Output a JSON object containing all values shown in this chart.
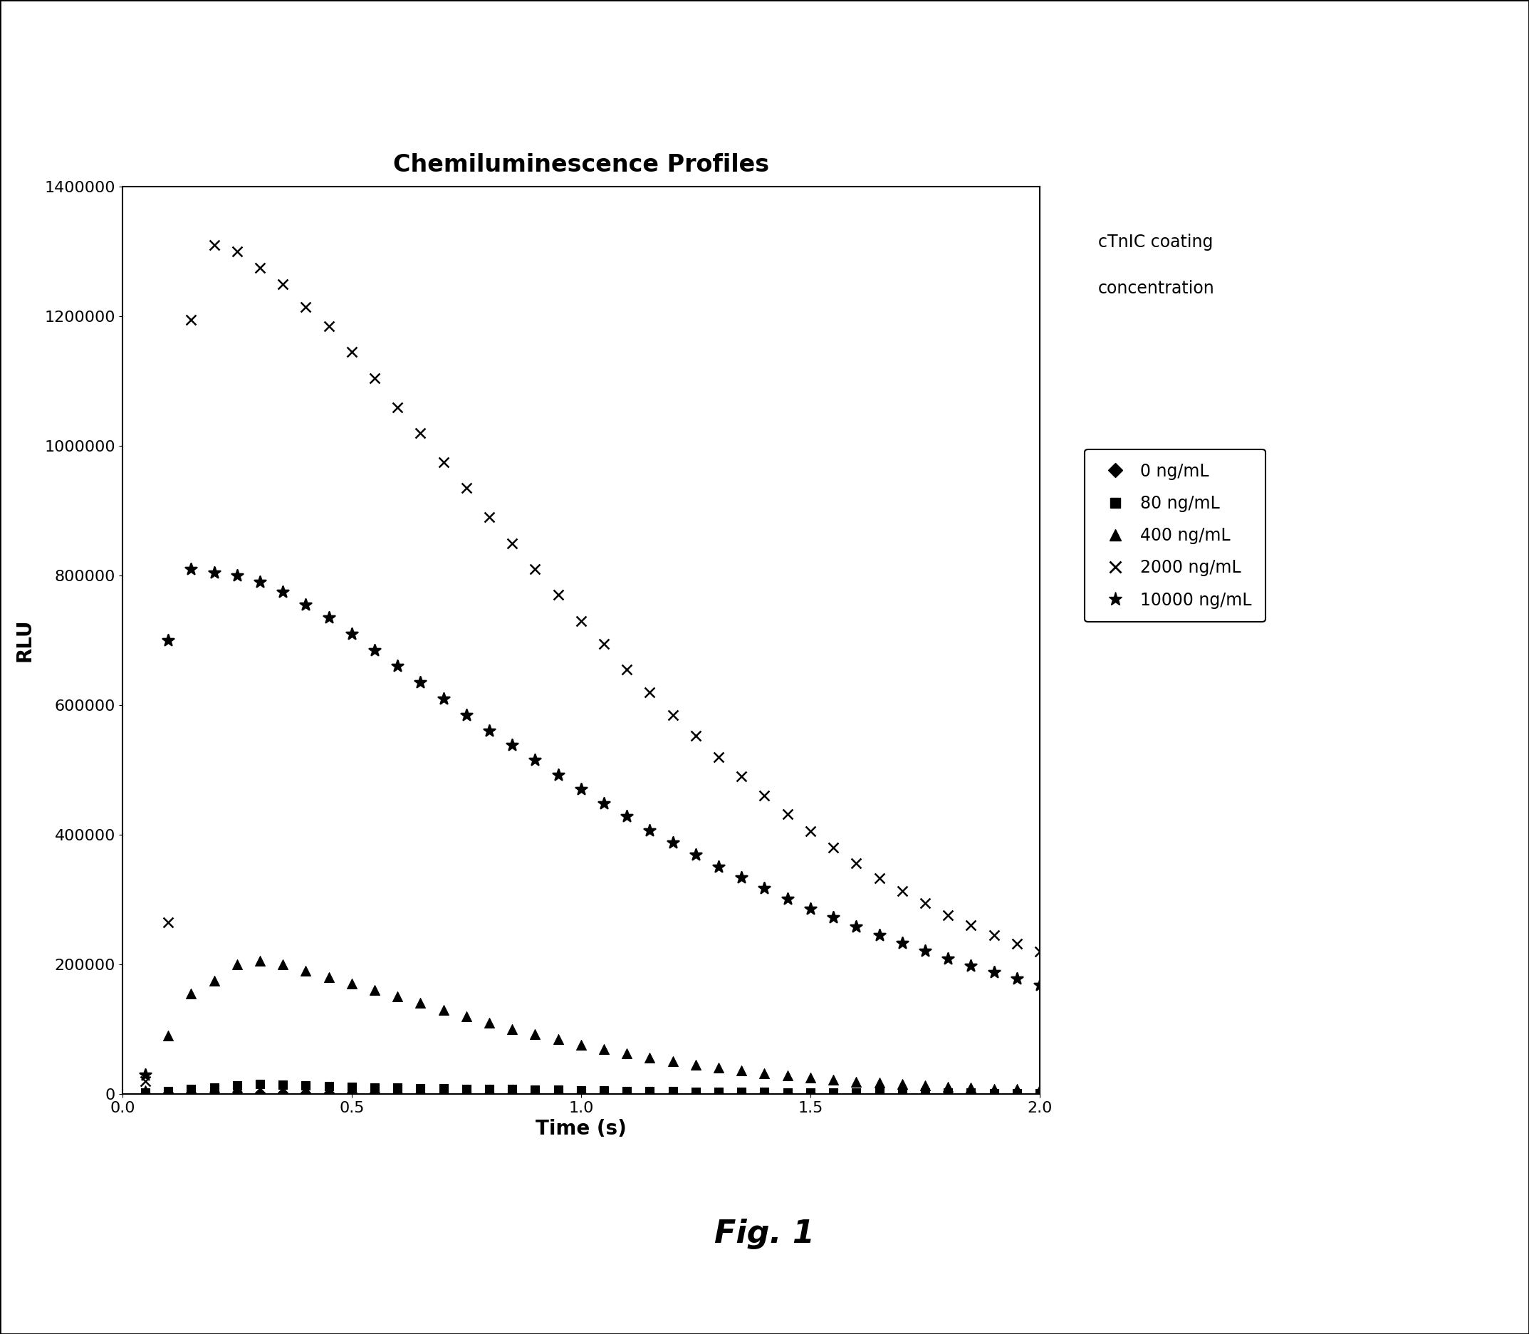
{
  "title": "Chemiluminescence Profiles",
  "xlabel": "Time (s)",
  "ylabel": "RLU",
  "xlim": [
    0,
    2
  ],
  "ylim": [
    0,
    1400000
  ],
  "xticks": [
    0,
    0.5,
    1,
    1.5,
    2
  ],
  "yticks": [
    0,
    200000,
    400000,
    600000,
    800000,
    1000000,
    1200000,
    1400000
  ],
  "legend_title_line1": "cTnIC coating",
  "legend_title_line2": "concentration",
  "fig_label": "Fig. 1",
  "background_color": "#ffffff",
  "series": {
    "s0": {
      "label": "0 ng/mL",
      "marker": "D",
      "x": [
        0.05,
        0.1,
        0.15,
        0.2,
        0.25,
        0.3,
        0.35,
        0.4,
        0.45,
        0.5,
        0.55,
        0.6,
        0.65,
        0.7,
        0.75,
        0.8,
        0.85,
        0.9,
        0.95,
        1.0,
        1.05,
        1.1,
        1.15,
        1.2,
        1.25,
        1.3,
        1.35,
        1.4,
        1.45,
        1.5,
        1.55,
        1.6,
        1.65,
        1.7,
        1.75,
        1.8,
        1.85,
        1.9,
        1.95,
        2.0
      ],
      "y": [
        1000,
        2000,
        2500,
        3000,
        2800,
        2500,
        2200,
        2000,
        1800,
        1600,
        1500,
        1400,
        1300,
        1200,
        1100,
        1000,
        950,
        900,
        850,
        800,
        750,
        700,
        650,
        600,
        550,
        500,
        480,
        450,
        420,
        400,
        380,
        360,
        340,
        320,
        300,
        280,
        260,
        240,
        220,
        200
      ]
    },
    "s80": {
      "label": "80 ng/mL",
      "marker": "s",
      "x": [
        0.05,
        0.1,
        0.15,
        0.2,
        0.25,
        0.3,
        0.35,
        0.4,
        0.45,
        0.5,
        0.55,
        0.6,
        0.65,
        0.7,
        0.75,
        0.8,
        0.85,
        0.9,
        0.95,
        1.0,
        1.05,
        1.1,
        1.15,
        1.2,
        1.25,
        1.3,
        1.35,
        1.4,
        1.45,
        1.5,
        1.55,
        1.6,
        1.65,
        1.7,
        1.75,
        1.8,
        1.85,
        1.9,
        1.95,
        2.0
      ],
      "y": [
        2000,
        4000,
        7000,
        10000,
        13000,
        15000,
        14000,
        13000,
        12000,
        11000,
        10000,
        9500,
        9000,
        8500,
        8000,
        7500,
        7000,
        6500,
        6000,
        5500,
        5000,
        4600,
        4200,
        3800,
        3500,
        3200,
        2900,
        2700,
        2500,
        2300,
        2100,
        2000,
        1900,
        1800,
        1700,
        1600,
        1500,
        1400,
        1300,
        1200
      ]
    },
    "s400": {
      "label": "400 ng/mL",
      "marker": "^",
      "x": [
        0.05,
        0.1,
        0.15,
        0.2,
        0.25,
        0.3,
        0.35,
        0.4,
        0.45,
        0.5,
        0.55,
        0.6,
        0.65,
        0.7,
        0.75,
        0.8,
        0.85,
        0.9,
        0.95,
        1.0,
        1.05,
        1.1,
        1.15,
        1.2,
        1.25,
        1.3,
        1.35,
        1.4,
        1.45,
        1.5,
        1.55,
        1.6,
        1.65,
        1.7,
        1.75,
        1.8,
        1.85,
        1.9,
        1.95,
        2.0
      ],
      "y": [
        5000,
        90000,
        155000,
        175000,
        200000,
        205000,
        200000,
        190000,
        180000,
        170000,
        160000,
        150000,
        140000,
        130000,
        120000,
        110000,
        100000,
        92000,
        84000,
        76000,
        69000,
        62000,
        56000,
        50000,
        45000,
        40000,
        36000,
        32000,
        28000,
        25000,
        22000,
        19000,
        17000,
        15000,
        13000,
        11000,
        9500,
        8000,
        7000,
        6000
      ]
    },
    "s2000": {
      "label": "2000 ng/mL",
      "marker": "x",
      "x": [
        0.05,
        0.1,
        0.15,
        0.2,
        0.25,
        0.3,
        0.35,
        0.4,
        0.45,
        0.5,
        0.55,
        0.6,
        0.65,
        0.7,
        0.75,
        0.8,
        0.85,
        0.9,
        0.95,
        1.0,
        1.05,
        1.1,
        1.15,
        1.2,
        1.25,
        1.3,
        1.35,
        1.4,
        1.45,
        1.5,
        1.55,
        1.6,
        1.65,
        1.7,
        1.75,
        1.8,
        1.85,
        1.9,
        1.95,
        2.0
      ],
      "y": [
        20000,
        265000,
        1195000,
        1310000,
        1300000,
        1275000,
        1250000,
        1215000,
        1185000,
        1145000,
        1105000,
        1060000,
        1020000,
        975000,
        935000,
        890000,
        850000,
        810000,
        770000,
        730000,
        695000,
        655000,
        620000,
        585000,
        553000,
        520000,
        490000,
        460000,
        432000,
        405000,
        380000,
        356000,
        333000,
        313000,
        294000,
        276000,
        260000,
        245000,
        232000,
        220000
      ]
    },
    "s10000": {
      "label": "10000 ng/mL",
      "marker": "*",
      "x": [
        0.05,
        0.1,
        0.15,
        0.2,
        0.25,
        0.3,
        0.35,
        0.4,
        0.45,
        0.5,
        0.55,
        0.6,
        0.65,
        0.7,
        0.75,
        0.8,
        0.85,
        0.9,
        0.95,
        1.0,
        1.05,
        1.1,
        1.15,
        1.2,
        1.25,
        1.3,
        1.35,
        1.4,
        1.45,
        1.5,
        1.55,
        1.6,
        1.65,
        1.7,
        1.75,
        1.8,
        1.85,
        1.9,
        1.95,
        2.0
      ],
      "y": [
        30000,
        700000,
        810000,
        805000,
        800000,
        790000,
        775000,
        755000,
        735000,
        710000,
        685000,
        660000,
        635000,
        610000,
        585000,
        560000,
        538000,
        515000,
        492000,
        470000,
        448000,
        428000,
        407000,
        388000,
        369000,
        351000,
        334000,
        317000,
        301000,
        286000,
        272000,
        258000,
        245000,
        233000,
        221000,
        209000,
        198000,
        188000,
        178000,
        168000
      ]
    }
  }
}
